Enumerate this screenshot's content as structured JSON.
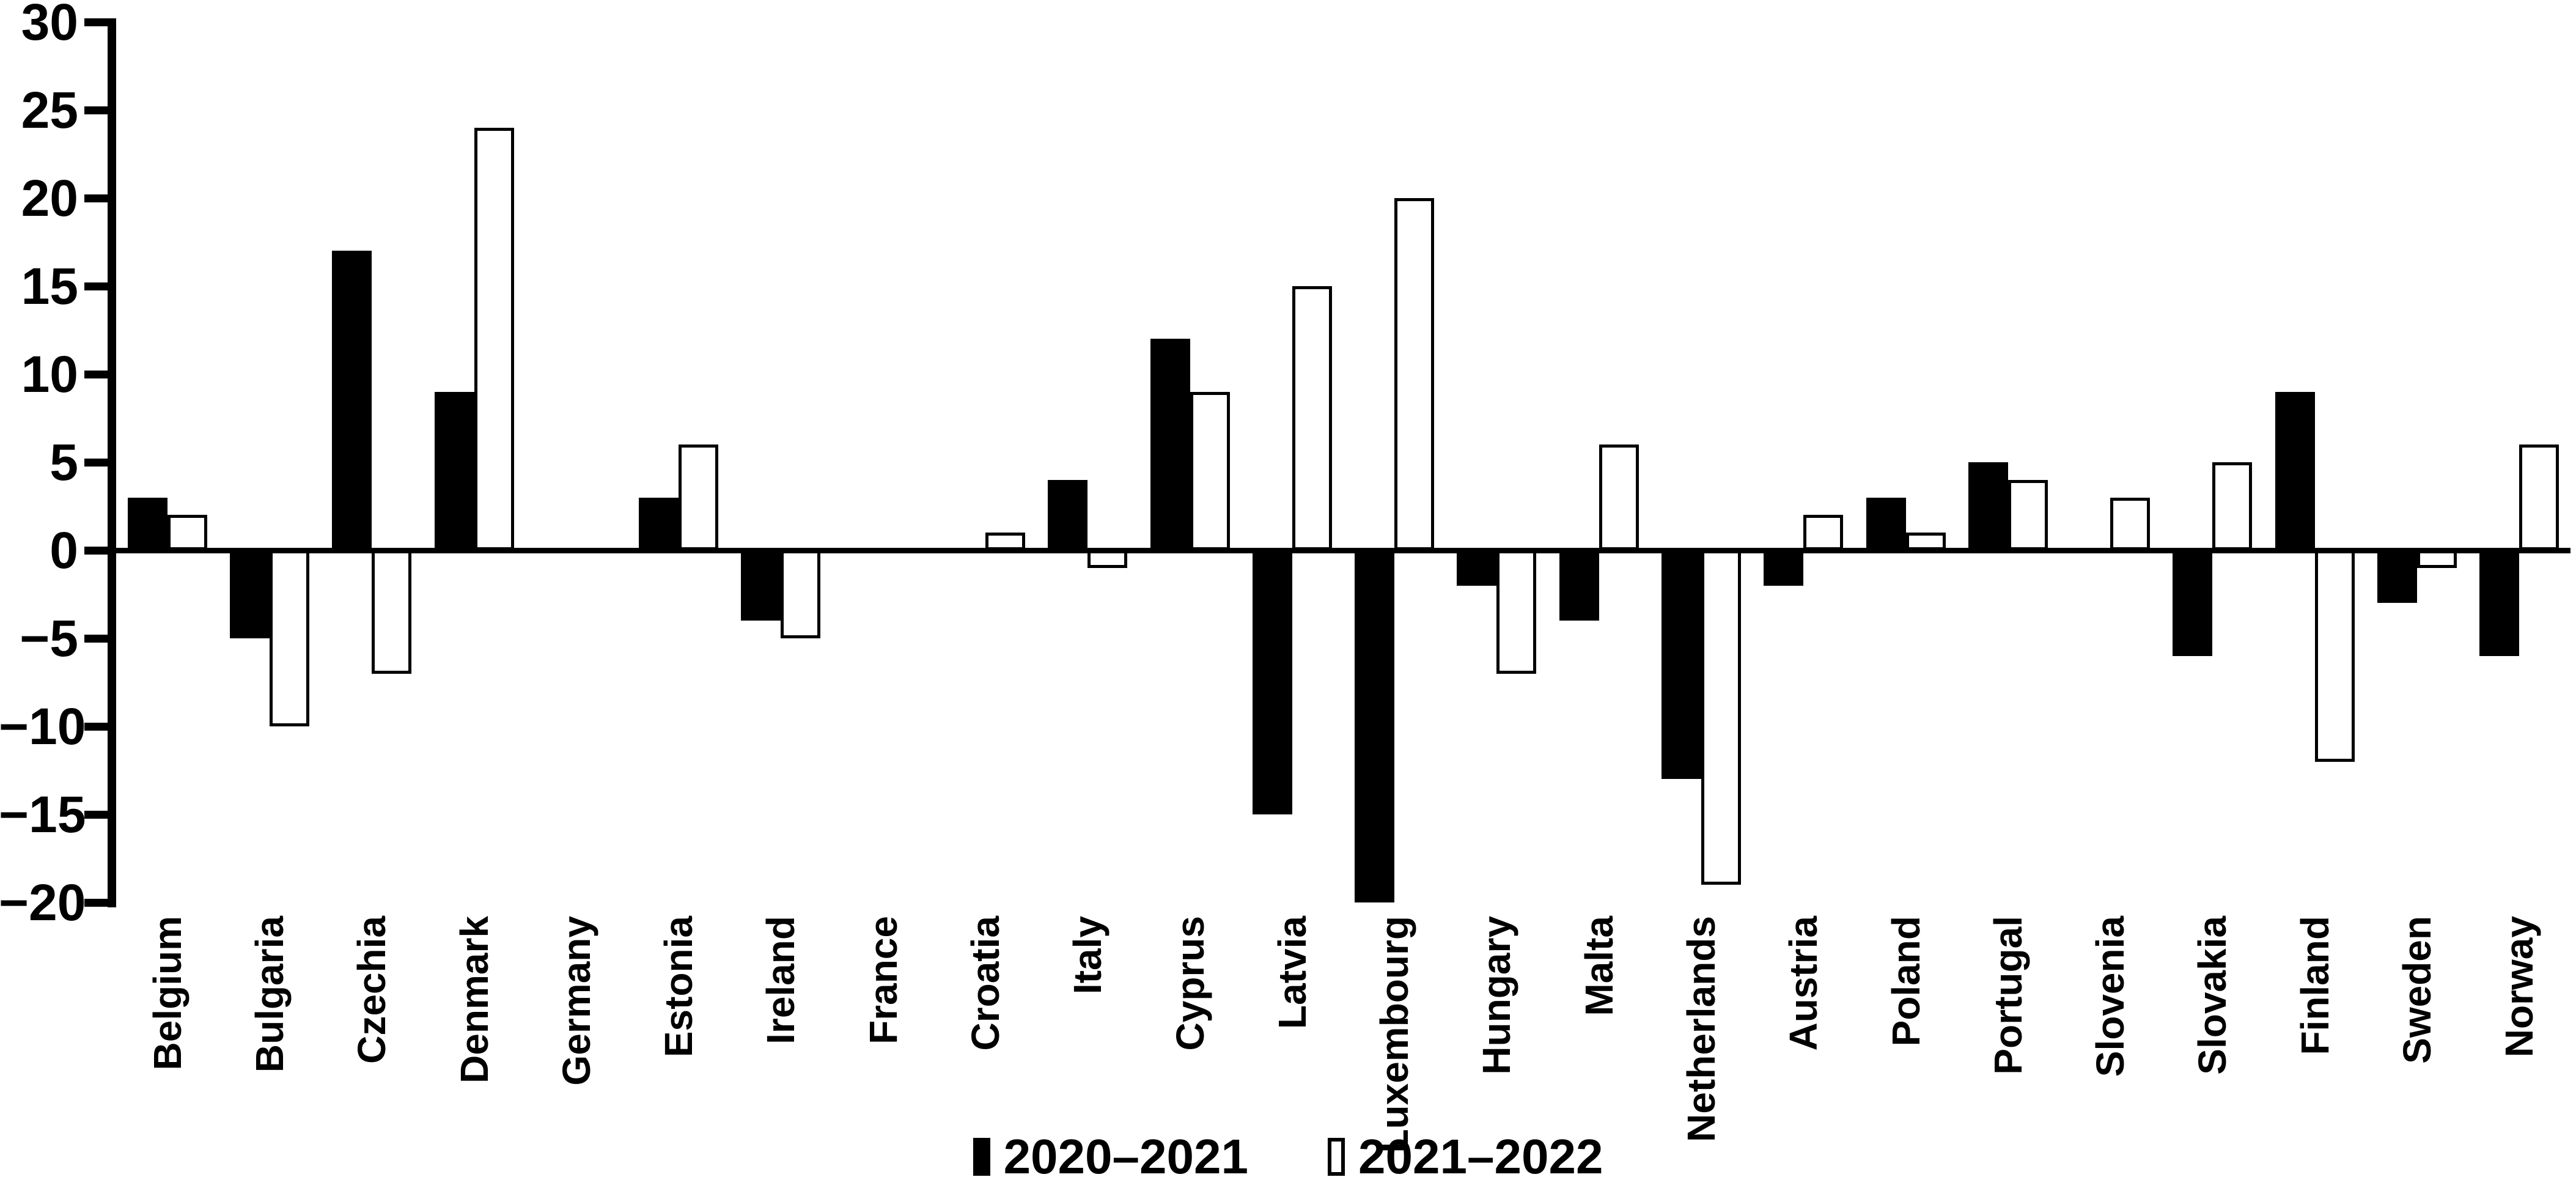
{
  "chart_data": {
    "type": "bar",
    "title": "",
    "xlabel": "",
    "ylabel": "",
    "categories": [
      "Belgium",
      "Bulgaria",
      "Czechia",
      "Denmark",
      "Germany",
      "Estonia",
      "Ireland",
      "France",
      "Croatia",
      "Italy",
      "Cyprus",
      "Latvia",
      "Luxembourg",
      "Hungary",
      "Malta",
      "Netherlands",
      "Austria",
      "Poland",
      "Portugal",
      "Slovenia",
      "Slovakia",
      "Finland",
      "Sweden",
      "Norway"
    ],
    "series": [
      {
        "name": "2020–2021",
        "fill": "#000000",
        "values": [
          3,
          -5,
          17,
          9,
          0,
          3,
          -4,
          0,
          0,
          4,
          12,
          -15,
          -20,
          -2,
          -4,
          -13,
          -2,
          3,
          5,
          0,
          -6,
          9,
          -3,
          -6
        ]
      },
      {
        "name": "2021–2022",
        "fill": "#ffffff",
        "values": [
          2,
          -10,
          -7,
          24,
          0,
          6,
          -5,
          0,
          1,
          -1,
          9,
          15,
          20,
          -7,
          6,
          -19,
          2,
          1,
          4,
          3,
          5,
          -12,
          -1,
          6
        ]
      }
    ],
    "ylim": [
      -20,
      30
    ],
    "ytick_step": 5,
    "yticks": [
      30,
      25,
      20,
      15,
      10,
      5,
      0,
      -5,
      -10,
      -15,
      -20
    ],
    "grid": false,
    "legend_position": "bottom-center",
    "bar_border_color": "#000000",
    "axis_color": "#000000",
    "background": "#ffffff"
  },
  "legend": {
    "items": [
      {
        "label": "2020–2021",
        "swatch": "black"
      },
      {
        "label": "2021–2022",
        "swatch": "white"
      }
    ]
  }
}
